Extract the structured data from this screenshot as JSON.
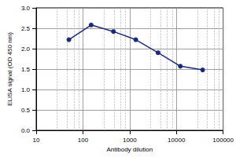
{
  "chart_data": {
    "type": "line",
    "xlabel": "Antibody dilution",
    "ylabel": "ELISA signal (OD 450 nm)",
    "x": [
      50,
      150,
      450,
      1350,
      4050,
      12150,
      36450
    ],
    "values": [
      2.22,
      2.58,
      2.42,
      2.22,
      1.9,
      1.57,
      1.48
    ],
    "color": "#1b2a7a",
    "marker": "circle",
    "log": "x",
    "xlim": [
      10,
      100000
    ],
    "xticks": [
      10,
      100,
      1000,
      10000,
      100000
    ],
    "ylim": [
      0,
      3
    ],
    "yticks": [
      {
        "value": 0,
        "label": "0.0"
      },
      {
        "value": 0.5,
        "label": "0.5"
      },
      {
        "value": 1,
        "label": "1.0"
      },
      {
        "value": 1.5,
        "label": "1.5"
      },
      {
        "value": 2,
        "label": "2.0"
      },
      {
        "value": 2.5,
        "label": "2.5"
      },
      {
        "value": 3,
        "label": "3.0"
      }
    ],
    "grid": true
  }
}
